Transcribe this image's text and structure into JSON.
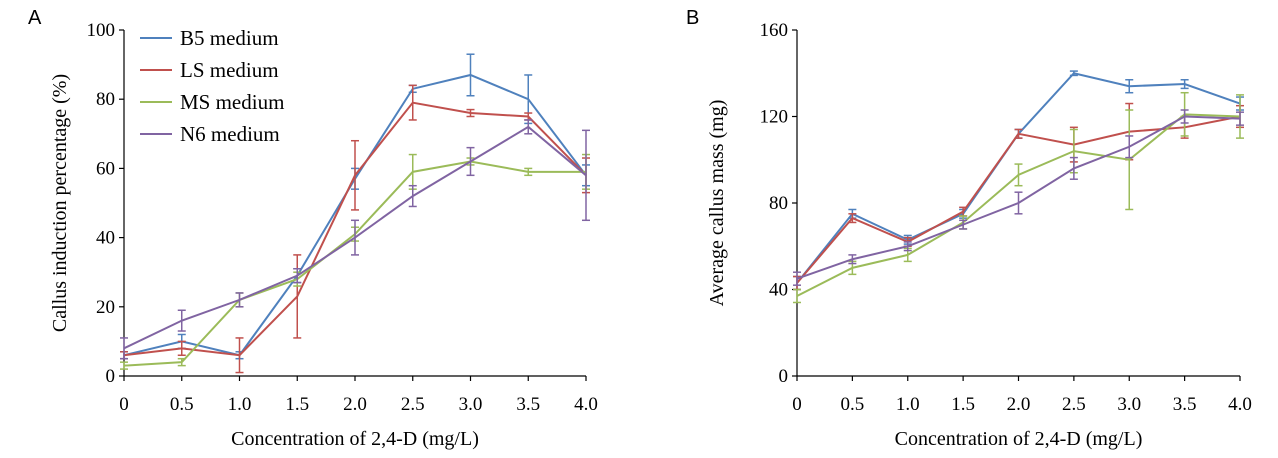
{
  "chart_data": [
    {
      "type": "line",
      "panel": "A",
      "xlabel": "Concentration of 2,4-D (mg/L)",
      "ylabel": "Callus induction percentage (%)",
      "x": [
        0,
        0.5,
        1.0,
        1.5,
        2.0,
        2.5,
        3.0,
        3.5,
        4.0
      ],
      "xtick_labels": [
        "0",
        "0.5",
        "1.0",
        "1.5",
        "2.0",
        "2.5",
        "3.0",
        "3.5",
        "4.0"
      ],
      "ylim": [
        0,
        100
      ],
      "yticks": [
        0,
        20,
        40,
        60,
        80,
        100
      ],
      "legend_position": "top-left",
      "series": [
        {
          "name": "B5 medium",
          "color": "#4f81bd",
          "values": [
            6,
            10,
            6,
            29,
            57,
            83,
            87,
            80,
            58
          ],
          "errors": [
            1,
            2,
            1,
            2,
            3,
            1,
            6,
            7,
            3
          ]
        },
        {
          "name": "LS medium",
          "color": "#c0504d",
          "values": [
            6,
            8,
            6,
            23,
            58,
            79,
            76,
            75,
            58
          ],
          "errors": [
            1,
            2,
            5,
            12,
            10,
            5,
            1,
            1,
            5
          ]
        },
        {
          "name": "MS medium",
          "color": "#9bbb59",
          "values": [
            3,
            4,
            22,
            28,
            41,
            59,
            62,
            59,
            59
          ],
          "errors": [
            1,
            1,
            2,
            2,
            2,
            5,
            1,
            1,
            5
          ]
        },
        {
          "name": "N6 medium",
          "color": "#8064a2",
          "values": [
            8,
            16,
            22,
            29,
            40,
            52,
            62,
            72,
            58
          ],
          "errors": [
            3,
            3,
            2,
            2,
            5,
            3,
            4,
            2,
            13
          ]
        }
      ]
    },
    {
      "type": "line",
      "panel": "B",
      "xlabel": "Concentration of 2,4-D (mg/L)",
      "ylabel": "Average callus mass (mg)",
      "x": [
        0,
        0.5,
        1.0,
        1.5,
        2.0,
        2.5,
        3.0,
        3.5,
        4.0
      ],
      "xtick_labels": [
        "0",
        "0.5",
        "1.0",
        "1.5",
        "2.0",
        "2.5",
        "3.0",
        "3.5",
        "4.0"
      ],
      "ylim": [
        0,
        160
      ],
      "yticks": [
        0,
        40,
        80,
        120,
        160
      ],
      "series": [
        {
          "name": "B5 medium",
          "color": "#4f81bd",
          "values": [
            43,
            75,
            63,
            75,
            112,
            140,
            134,
            135,
            126
          ],
          "errors": [
            3,
            2,
            2,
            2,
            2,
            1,
            3,
            2,
            3
          ]
        },
        {
          "name": "LS medium",
          "color": "#c0504d",
          "values": [
            43,
            73,
            62,
            76,
            112,
            107,
            113,
            115,
            120
          ],
          "errors": [
            3,
            2,
            2,
            2,
            2,
            8,
            13,
            5,
            5
          ]
        },
        {
          "name": "MS medium",
          "color": "#9bbb59",
          "values": [
            37,
            50,
            56,
            71,
            93,
            104,
            100,
            121,
            120
          ],
          "errors": [
            3,
            3,
            3,
            3,
            5,
            10,
            23,
            10,
            10
          ]
        },
        {
          "name": "N6 medium",
          "color": "#8064a2",
          "values": [
            45,
            54,
            60,
            70,
            80,
            96,
            106,
            120,
            119
          ],
          "errors": [
            3,
            2,
            2,
            2,
            5,
            5,
            5,
            3,
            3
          ]
        }
      ]
    }
  ]
}
